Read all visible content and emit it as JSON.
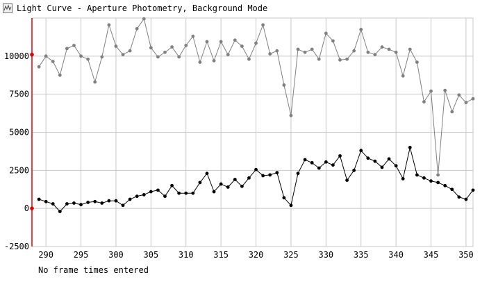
{
  "window": {
    "title": "Light Curve - Aperture Photometry, Background Mode",
    "icon": "light-curve-app-icon"
  },
  "status": {
    "text": "No frame times entered"
  },
  "colors": {
    "series_top": "#808080",
    "series_bottom": "#000000",
    "grid": "#c8c8c8",
    "cursor": "#e00000",
    "background": "#ffffff"
  },
  "chart_data": {
    "type": "line",
    "title": "",
    "xlabel": "",
    "ylabel": "",
    "xlim": [
      288,
      351
    ],
    "ylim": [
      -2500,
      12500
    ],
    "x_ticks": [
      "290",
      "295",
      "300",
      "305",
      "310",
      "315",
      "320",
      "325",
      "330",
      "335",
      "340",
      "345",
      "350"
    ],
    "y_ticks": [
      "-2500",
      "0",
      "2500",
      "5000",
      "7500",
      "10000"
    ],
    "grid": true,
    "cursor_x": 288,
    "x": [
      289,
      290,
      291,
      292,
      293,
      294,
      295,
      296,
      297,
      298,
      299,
      300,
      301,
      302,
      303,
      304,
      305,
      306,
      307,
      308,
      309,
      310,
      311,
      312,
      313,
      314,
      315,
      316,
      317,
      318,
      319,
      320,
      321,
      322,
      323,
      324,
      325,
      326,
      327,
      328,
      329,
      330,
      331,
      332,
      333,
      334,
      335,
      336,
      337,
      338,
      339,
      340,
      341,
      342,
      343,
      344,
      345,
      346,
      347,
      348,
      349,
      350,
      351
    ],
    "series": [
      {
        "values": [
          9300,
          10000,
          9650,
          8750,
          10500,
          10700,
          10000,
          9800,
          8300,
          9950,
          12050,
          10650,
          10100,
          10350,
          11800,
          12450,
          10550,
          9950,
          10250,
          10600,
          9950,
          10700,
          11300,
          9600,
          10950,
          9700,
          10950,
          10100,
          11050,
          10650,
          9800,
          10850,
          12050,
          10150,
          10350,
          8100,
          6100,
          10450,
          10250,
          10450,
          9800,
          11500,
          11000,
          9750,
          9800,
          10350,
          11750,
          10250,
          10100,
          10600,
          10450,
          10250,
          8700,
          10450,
          9600,
          7000,
          7700,
          2200,
          7750,
          6350,
          7450,
          6950,
          7200
        ]
      },
      {
        "values": [
          600,
          450,
          300,
          -200,
          300,
          350,
          250,
          400,
          450,
          350,
          500,
          500,
          200,
          600,
          800,
          900,
          1100,
          1200,
          800,
          1500,
          1000,
          1000,
          1000,
          1700,
          2300,
          1100,
          1600,
          1400,
          1900,
          1450,
          2000,
          2550,
          2150,
          2200,
          2350,
          700,
          200,
          2300,
          3200,
          3000,
          2650,
          3050,
          2850,
          3450,
          1850,
          2500,
          3800,
          3300,
          3100,
          2700,
          3250,
          2800,
          1950,
          4000,
          2200,
          2000,
          1800,
          1700,
          1500,
          1250,
          750,
          600,
          1200
        ]
      }
    ]
  }
}
